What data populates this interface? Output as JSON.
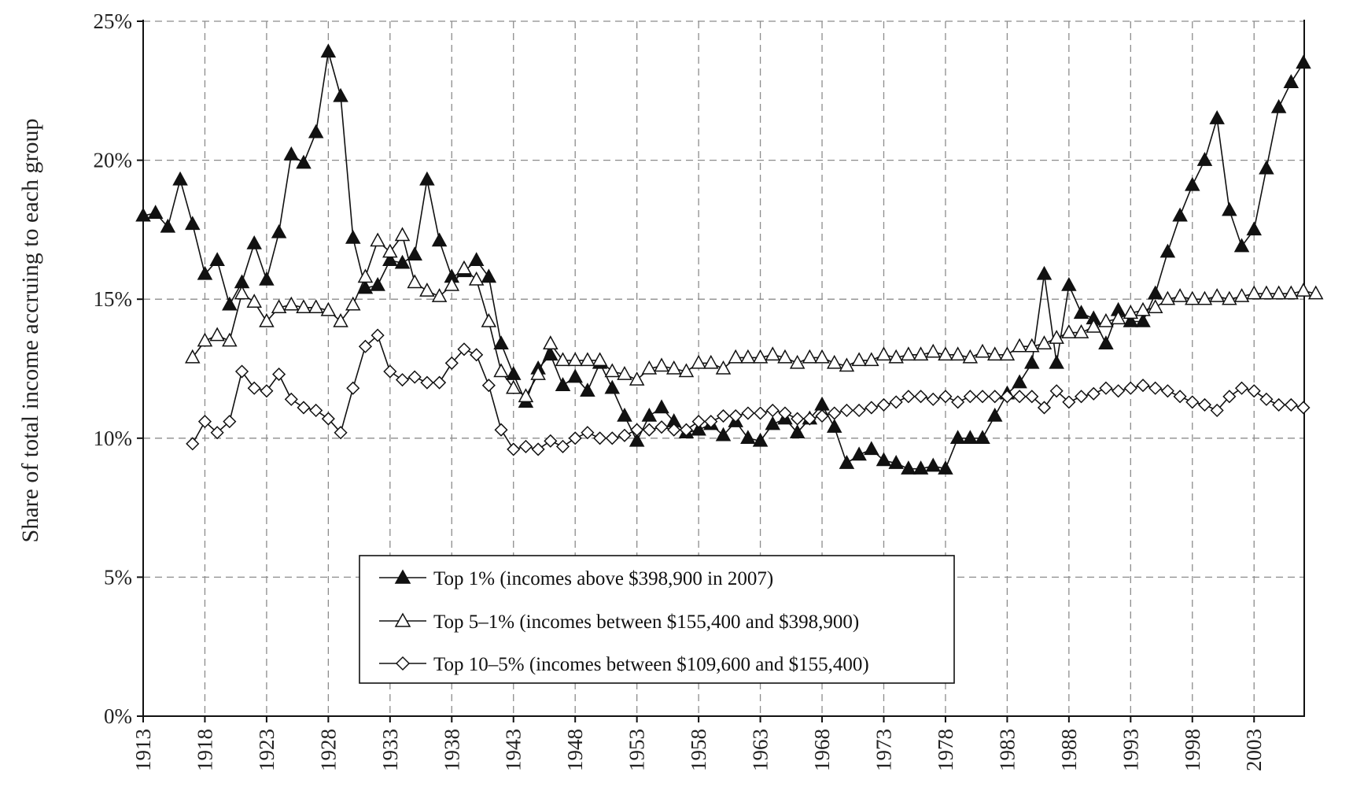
{
  "chart_data": {
    "type": "line",
    "title": "",
    "xlabel": "",
    "ylabel": "Share of total income accruing to each group",
    "xlim": [
      1913,
      2007
    ],
    "ylim": [
      0,
      25
    ],
    "x_ticks": [
      1913,
      1918,
      1923,
      1928,
      1933,
      1938,
      1943,
      1948,
      1953,
      1958,
      1963,
      1968,
      1973,
      1978,
      1983,
      1988,
      1993,
      1998,
      2003
    ],
    "x_tick_labels": [
      "1913",
      "1918",
      "1923",
      "1928",
      "1933",
      "1938",
      "1943",
      "1948",
      "1953",
      "1958",
      "1963",
      "1968",
      "1973",
      "1978",
      "1983",
      "1988",
      "1993",
      "1998",
      "2003"
    ],
    "y_ticks": [
      0,
      5,
      10,
      15,
      20,
      25
    ],
    "y_tick_labels": [
      "0%",
      "5%",
      "10%",
      "15%",
      "20%",
      "25%"
    ],
    "grid": true,
    "legend_position": "bottom-center",
    "colors": {
      "line": "#111111",
      "grid": "#8c8c8c"
    },
    "series": [
      {
        "name": "Top 1% (incomes above $398,900 in 2007)",
        "marker": "filled-triangle",
        "x_start": 1913,
        "values": [
          18.0,
          18.1,
          17.6,
          19.3,
          17.7,
          15.9,
          16.4,
          14.8,
          15.6,
          17.0,
          15.7,
          17.4,
          20.2,
          19.9,
          21.0,
          23.9,
          22.3,
          17.2,
          15.4,
          15.5,
          16.4,
          16.3,
          16.6,
          19.3,
          17.1,
          15.8,
          16.0,
          16.4,
          15.8,
          13.4,
          12.3,
          11.3,
          12.5,
          13.0,
          11.9,
          12.2,
          11.7,
          12.7,
          11.8,
          10.8,
          9.9,
          10.8,
          11.1,
          10.6,
          10.2,
          10.3,
          10.5,
          10.1,
          10.6,
          10.0,
          9.9,
          10.5,
          10.7,
          10.2,
          10.7,
          11.2,
          10.4,
          9.1,
          9.4,
          9.6,
          9.2,
          9.1,
          8.9,
          8.9,
          9.0,
          8.9,
          10.0,
          10.0,
          10.0,
          10.8,
          11.6,
          12.0,
          12.7,
          15.9,
          12.7,
          15.5,
          14.5,
          14.3,
          13.4,
          14.6,
          14.2,
          14.2,
          15.2,
          16.7,
          18.0,
          19.1,
          20.0,
          21.5,
          18.2,
          16.9,
          17.5,
          19.7,
          21.9,
          22.8,
          23.5
        ]
      },
      {
        "name": "Top 5–1% (incomes between $155,400 and $398,900)",
        "marker": "open-triangle",
        "x_start": 1917,
        "values": [
          12.9,
          13.5,
          13.7,
          13.5,
          15.2,
          14.9,
          14.2,
          14.7,
          14.8,
          14.7,
          14.7,
          14.6,
          14.2,
          14.8,
          15.8,
          17.1,
          16.7,
          17.3,
          15.6,
          15.3,
          15.1,
          15.5,
          16.1,
          15.7,
          14.2,
          12.4,
          11.8,
          11.5,
          12.3,
          13.4,
          12.8,
          12.8,
          12.8,
          12.8,
          12.4,
          12.3,
          12.1,
          12.5,
          12.6,
          12.5,
          12.4,
          12.7,
          12.7,
          12.5,
          12.9,
          12.9,
          12.9,
          13.0,
          12.9,
          12.7,
          12.9,
          12.9,
          12.7,
          12.6,
          12.8,
          12.8,
          13.0,
          12.9,
          13.0,
          13.0,
          13.1,
          13.0,
          13.0,
          12.9,
          13.1,
          13.0,
          13.0,
          13.3,
          13.3,
          13.4,
          13.6,
          13.8,
          13.8,
          14.0,
          14.2,
          14.3,
          14.5,
          14.6,
          14.7,
          15.0,
          15.1,
          15.0,
          15.0,
          15.1,
          15.0,
          15.1,
          15.2,
          15.2,
          15.2,
          15.2,
          15.3,
          15.2
        ]
      },
      {
        "name": "Top 10–5% (incomes between $109,600 and $155,400)",
        "marker": "open-diamond",
        "x_start": 1917,
        "values": [
          9.8,
          10.6,
          10.2,
          10.6,
          12.4,
          11.8,
          11.7,
          12.3,
          11.4,
          11.1,
          11.0,
          10.7,
          10.2,
          11.8,
          13.3,
          13.7,
          12.4,
          12.1,
          12.2,
          12.0,
          12.0,
          12.7,
          13.2,
          13.0,
          11.9,
          10.3,
          9.6,
          9.7,
          9.6,
          9.9,
          9.7,
          10.0,
          10.2,
          10.0,
          10.0,
          10.1,
          10.3,
          10.3,
          10.4,
          10.3,
          10.3,
          10.6,
          10.6,
          10.8,
          10.8,
          10.9,
          10.9,
          11.0,
          10.9,
          10.7,
          10.7,
          10.8,
          10.9,
          11.0,
          11.0,
          11.1,
          11.2,
          11.3,
          11.5,
          11.5,
          11.4,
          11.5,
          11.3,
          11.5,
          11.5,
          11.5,
          11.5,
          11.5,
          11.5,
          11.1,
          11.7,
          11.3,
          11.5,
          11.6,
          11.8,
          11.7,
          11.8,
          11.9,
          11.8,
          11.7,
          11.5,
          11.3,
          11.2,
          11.0,
          11.5,
          11.8,
          11.7,
          11.4,
          11.2,
          11.2,
          11.1
        ]
      }
    ]
  }
}
